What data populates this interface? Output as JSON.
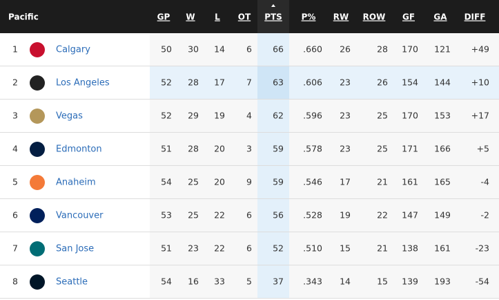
{
  "header": {
    "title": "Pacific",
    "columns": [
      "GP",
      "W",
      "L",
      "OT",
      "PTS",
      "P%",
      "RW",
      "ROW",
      "GF",
      "GA",
      "DIFF"
    ]
  },
  "table": {
    "rows": [
      [
        "1",
        "Calgary",
        "50",
        "30",
        "14",
        "6",
        "66",
        ".660",
        "26",
        "28",
        "170",
        "121",
        "+49"
      ],
      [
        "2",
        "Los Angeles",
        "52",
        "28",
        "17",
        "7",
        "63",
        ".606",
        "23",
        "26",
        "154",
        "144",
        "+10"
      ],
      [
        "3",
        "Vegas",
        "52",
        "29",
        "19",
        "4",
        "62",
        ".596",
        "23",
        "25",
        "170",
        "153",
        "+17"
      ],
      [
        "4",
        "Edmonton",
        "51",
        "28",
        "20",
        "3",
        "59",
        ".578",
        "23",
        "25",
        "171",
        "166",
        "+5"
      ],
      [
        "5",
        "Anaheim",
        "54",
        "25",
        "20",
        "9",
        "59",
        ".546",
        "17",
        "21",
        "161",
        "165",
        "-4"
      ],
      [
        "6",
        "Vancouver",
        "53",
        "25",
        "22",
        "6",
        "56",
        ".528",
        "19",
        "22",
        "147",
        "149",
        "-2"
      ],
      [
        "7",
        "San Jose",
        "51",
        "23",
        "22",
        "6",
        "52",
        ".510",
        "15",
        "21",
        "138",
        "161",
        "-23"
      ],
      [
        "8",
        "Seattle",
        "54",
        "16",
        "33",
        "5",
        "37",
        ".343",
        "14",
        "15",
        "139",
        "193",
        "-54"
      ]
    ]
  }
}
